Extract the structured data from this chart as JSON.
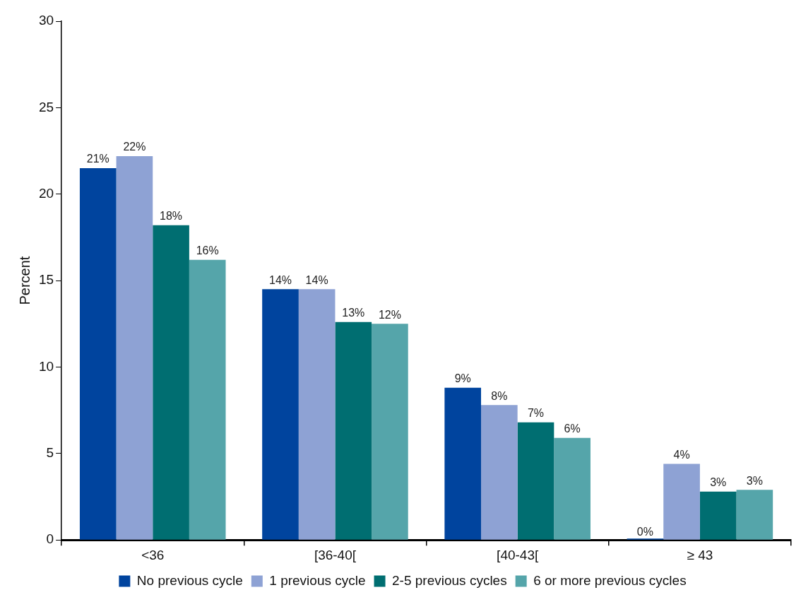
{
  "chart_data": {
    "type": "bar",
    "ylabel": "Percent",
    "categories": [
      "<36",
      "[36-40[",
      "[40-43[",
      "≥ 43"
    ],
    "series": [
      {
        "name": "No previous cycle",
        "color": "#00449e",
        "values": [
          21.5,
          14.5,
          8.8,
          0
        ],
        "value_labels": [
          "21%",
          "14%",
          "9%",
          "0%"
        ]
      },
      {
        "name": "1 previous cycle",
        "color": "#8ea2d4",
        "values": [
          22.2,
          14.5,
          7.8,
          4.4
        ],
        "value_labels": [
          "22%",
          "14%",
          "8%",
          "4%"
        ]
      },
      {
        "name": "2-5 previous cycles",
        "color": "#006e71",
        "values": [
          18.2,
          12.6,
          6.8,
          2.8
        ],
        "value_labels": [
          "18%",
          "13%",
          "7%",
          "3%"
        ]
      },
      {
        "name": "6 or more previous cycles",
        "color": "#55a5aa",
        "values": [
          16.2,
          12.5,
          5.9,
          2.9
        ],
        "value_labels": [
          "16%",
          "12%",
          "6%",
          "3%"
        ]
      }
    ],
    "ylim": [
      0,
      30
    ],
    "yticks": [
      0,
      5,
      10,
      15,
      20,
      25,
      30
    ],
    "grid": false,
    "legend": "bottom"
  }
}
